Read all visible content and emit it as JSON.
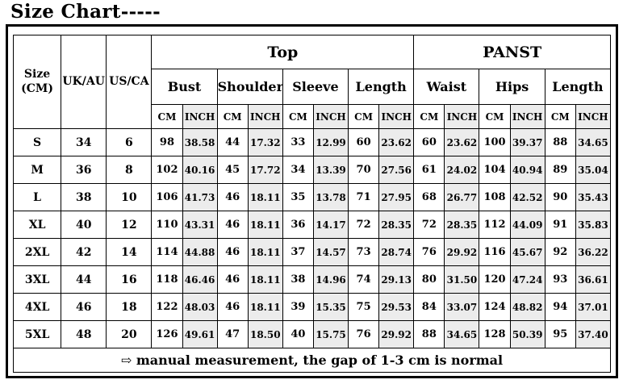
{
  "title": "Size Chart-----",
  "colors": {
    "inch_column_bg": "#ececec",
    "border": "#000000",
    "background": "#ffffff"
  },
  "table": {
    "size_header_line1": "Size",
    "size_header_line2": "(CM)",
    "uk_au_header": "UK/AU",
    "us_ca_header": "US/CA",
    "top_group_label": "Top",
    "panst_group_label": "PANST",
    "measure_headers": [
      "Bust",
      "Shoulder",
      "Sleeve",
      "Length",
      "Waist",
      "Hips",
      "Length"
    ],
    "unit_cm": "CM",
    "unit_inch": "INCH",
    "rows": [
      {
        "size": "S",
        "uk_au": "34",
        "us_ca": "6",
        "values": [
          "98",
          "38.58",
          "44",
          "17.32",
          "33",
          "12.99",
          "60",
          "23.62",
          "60",
          "23.62",
          "100",
          "39.37",
          "88",
          "34.65"
        ]
      },
      {
        "size": "M",
        "uk_au": "36",
        "us_ca": "8",
        "values": [
          "102",
          "40.16",
          "45",
          "17.72",
          "34",
          "13.39",
          "70",
          "27.56",
          "61",
          "24.02",
          "104",
          "40.94",
          "89",
          "35.04"
        ]
      },
      {
        "size": "L",
        "uk_au": "38",
        "us_ca": "10",
        "values": [
          "106",
          "41.73",
          "46",
          "18.11",
          "35",
          "13.78",
          "71",
          "27.95",
          "68",
          "26.77",
          "108",
          "42.52",
          "90",
          "35.43"
        ]
      },
      {
        "size": "XL",
        "uk_au": "40",
        "us_ca": "12",
        "values": [
          "110",
          "43.31",
          "46",
          "18.11",
          "36",
          "14.17",
          "72",
          "28.35",
          "72",
          "28.35",
          "112",
          "44.09",
          "91",
          "35.83"
        ]
      },
      {
        "size": "2XL",
        "uk_au": "42",
        "us_ca": "14",
        "values": [
          "114",
          "44.88",
          "46",
          "18.11",
          "37",
          "14.57",
          "73",
          "28.74",
          "76",
          "29.92",
          "116",
          "45.67",
          "92",
          "36.22"
        ]
      },
      {
        "size": "3XL",
        "uk_au": "44",
        "us_ca": "16",
        "values": [
          "118",
          "46.46",
          "46",
          "18.11",
          "38",
          "14.96",
          "74",
          "29.13",
          "80",
          "31.50",
          "120",
          "47.24",
          "93",
          "36.61"
        ]
      },
      {
        "size": "4XL",
        "uk_au": "46",
        "us_ca": "18",
        "values": [
          "122",
          "48.03",
          "46",
          "18.11",
          "39",
          "15.35",
          "75",
          "29.53",
          "84",
          "33.07",
          "124",
          "48.82",
          "94",
          "37.01"
        ]
      },
      {
        "size": "5XL",
        "uk_au": "48",
        "us_ca": "20",
        "values": [
          "126",
          "49.61",
          "47",
          "18.50",
          "40",
          "15.75",
          "76",
          "29.92",
          "88",
          "34.65",
          "128",
          "50.39",
          "95",
          "37.40"
        ]
      }
    ],
    "footnote": "⇨ manual measurement, the gap of 1-3 cm is normal"
  }
}
